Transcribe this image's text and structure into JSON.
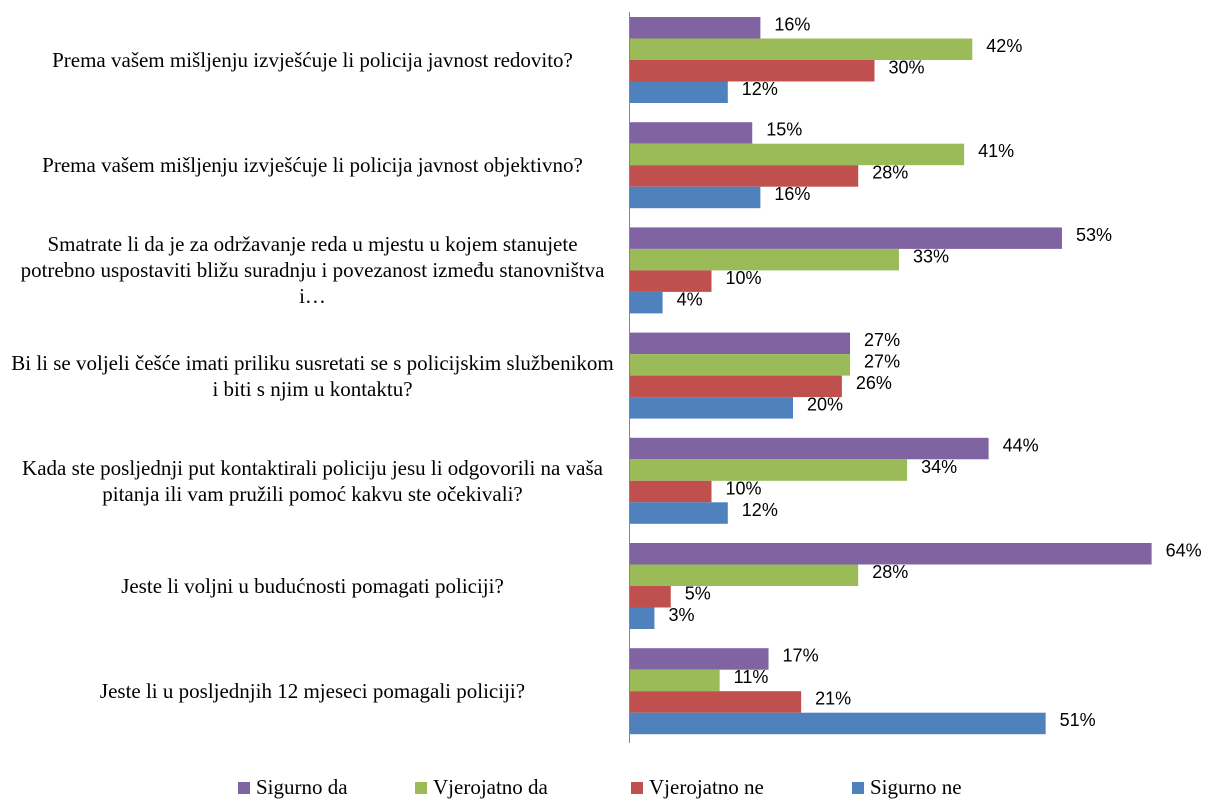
{
  "chart_data": {
    "type": "bar",
    "orientation": "horizontal",
    "categories": [
      "Prema vašem mišljenju izvješćuje li policija javnost redovito?",
      "Prema vašem mišljenju izvješćuje li policija javnost objektivno?",
      "Smatrate li da je za održavanje reda u mjestu u kojem stanujete potrebno uspostaviti bližu suradnju i povezanost između stanovništva i…",
      "Bi li se voljeli češće imati priliku susretati se s policijskim službenikom i biti s njim u kontaktu?",
      "Kada ste posljednji put kontaktirali policiju jesu li odgovorili na vaša pitanja ili vam pružili pomoć kakvu ste očekivali?",
      "Jeste li voljni u budućnosti pomagati policiji?",
      "Jeste li u posljednjih 12 mjeseci pomagali policiji?"
    ],
    "series": [
      {
        "name": "Sigurno da",
        "color": "#8064a2",
        "values": [
          16,
          15,
          53,
          27,
          44,
          64,
          17
        ],
        "value_labels": [
          "16%",
          "15%",
          "53%",
          "27%",
          "44%",
          "64%",
          "17%"
        ]
      },
      {
        "name": "Vjerojatno da",
        "color": "#9bbb59",
        "values": [
          42,
          41,
          33,
          27,
          34,
          28,
          11
        ],
        "value_labels": [
          "42%",
          "41%",
          "33%",
          "27%",
          "34%",
          "28%",
          "11%"
        ]
      },
      {
        "name": "Vjerojatno ne",
        "color": "#c0504d",
        "values": [
          30,
          28,
          10,
          26,
          10,
          5,
          21
        ],
        "value_labels": [
          "30%",
          "28%",
          "10%",
          "26%",
          "10%",
          "5%",
          "21%"
        ]
      },
      {
        "name": "Sigurno ne",
        "color": "#4f81bd",
        "values": [
          12,
          16,
          4,
          20,
          12,
          3,
          51
        ],
        "value_labels": [
          "12%",
          "16%",
          "4%",
          "20%",
          "12%",
          "3%",
          "51%"
        ]
      }
    ],
    "legend": "bottom"
  }
}
